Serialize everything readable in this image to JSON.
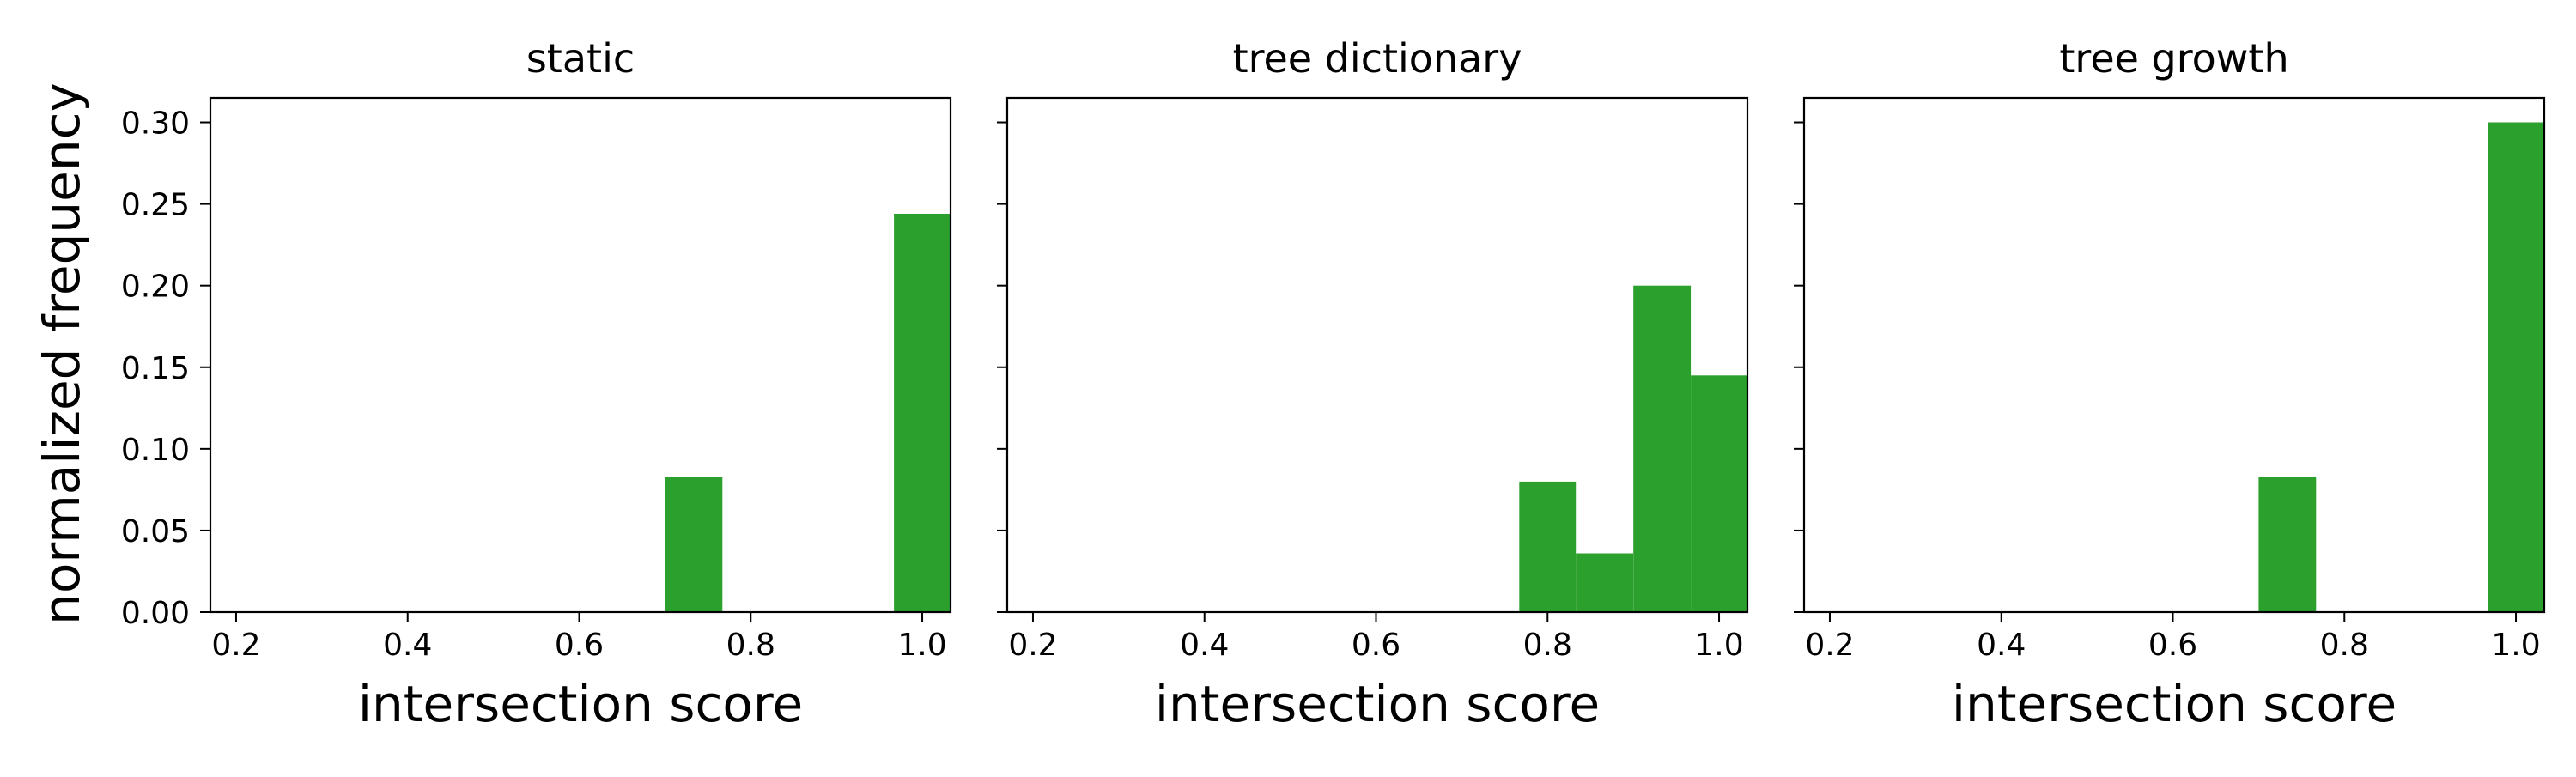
{
  "figure": {
    "ylabel": "normalized frequency"
  },
  "chart_data": [
    {
      "type": "bar",
      "title": "static",
      "xlabel": "intersection score",
      "ylabel": "normalized frequency",
      "xlim": [
        0.17,
        1.033
      ],
      "ylim": [
        0.0,
        0.315
      ],
      "x_ticks": [
        0.2,
        0.4,
        0.6,
        0.8,
        1.0
      ],
      "x_tick_labels": [
        "0.2",
        "0.4",
        "0.6",
        "0.8",
        "1.0"
      ],
      "y_ticks": [
        0.0,
        0.05,
        0.1,
        0.15,
        0.2,
        0.25,
        0.3
      ],
      "y_tick_labels": [
        "0.00",
        "0.05",
        "0.10",
        "0.15",
        "0.20",
        "0.25",
        "0.30"
      ],
      "bar_color": "#2ca02c",
      "bins": [
        {
          "x0": 0.7,
          "x1": 0.767,
          "value": 0.083
        },
        {
          "x0": 0.967,
          "x1": 1.033,
          "value": 0.244
        }
      ]
    },
    {
      "type": "bar",
      "title": "tree dictionary",
      "xlabel": "intersection score",
      "ylabel": "",
      "xlim": [
        0.17,
        1.033
      ],
      "ylim": [
        0.0,
        0.315
      ],
      "x_ticks": [
        0.2,
        0.4,
        0.6,
        0.8,
        1.0
      ],
      "x_tick_labels": [
        "0.2",
        "0.4",
        "0.6",
        "0.8",
        "1.0"
      ],
      "y_ticks": [
        0.0,
        0.05,
        0.1,
        0.15,
        0.2,
        0.25,
        0.3
      ],
      "y_tick_labels": [],
      "bar_color": "#2ca02c",
      "bins": [
        {
          "x0": 0.767,
          "x1": 0.833,
          "value": 0.08
        },
        {
          "x0": 0.833,
          "x1": 0.9,
          "value": 0.036
        },
        {
          "x0": 0.9,
          "x1": 0.967,
          "value": 0.2
        },
        {
          "x0": 0.967,
          "x1": 1.033,
          "value": 0.145
        }
      ]
    },
    {
      "type": "bar",
      "title": "tree growth",
      "xlabel": "intersection score",
      "ylabel": "",
      "xlim": [
        0.17,
        1.033
      ],
      "ylim": [
        0.0,
        0.315
      ],
      "x_ticks": [
        0.2,
        0.4,
        0.6,
        0.8,
        1.0
      ],
      "x_tick_labels": [
        "0.2",
        "0.4",
        "0.6",
        "0.8",
        "1.0"
      ],
      "y_ticks": [
        0.0,
        0.05,
        0.1,
        0.15,
        0.2,
        0.25,
        0.3
      ],
      "y_tick_labels": [],
      "bar_color": "#2ca02c",
      "bins": [
        {
          "x0": 0.7,
          "x1": 0.767,
          "value": 0.083
        },
        {
          "x0": 0.967,
          "x1": 1.033,
          "value": 0.3
        }
      ]
    }
  ]
}
